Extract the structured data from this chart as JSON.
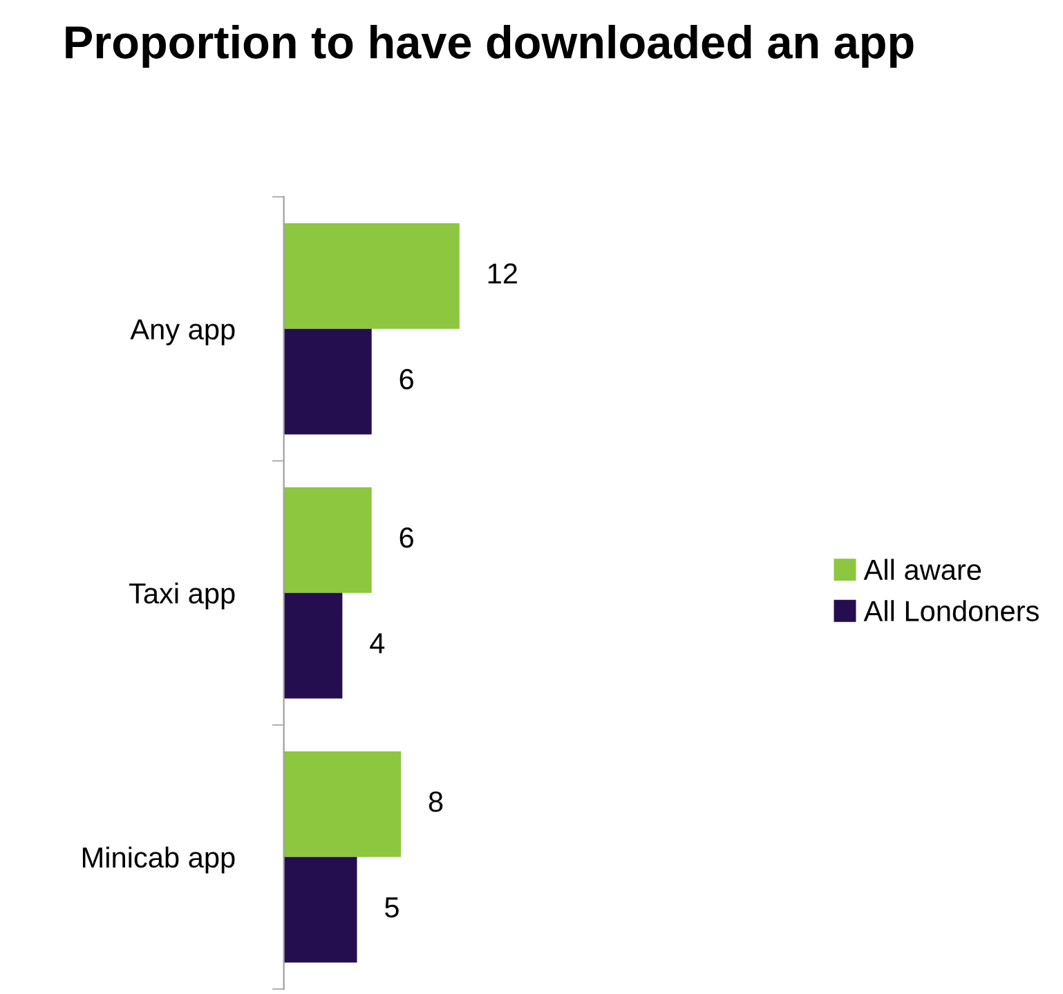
{
  "chart_data": {
    "type": "bar",
    "orientation": "horizontal",
    "title": "Proportion to have downloaded an app",
    "categories": [
      "Any app",
      "Taxi app",
      "Minicab app"
    ],
    "series": [
      {
        "name": "All aware",
        "color": "#8dc63f",
        "values": [
          12,
          6,
          8
        ]
      },
      {
        "name": "All Londoners",
        "color": "#250e4f",
        "values": [
          6,
          4,
          5
        ]
      }
    ],
    "data_labels": true,
    "legend": "right",
    "grid": false
  }
}
